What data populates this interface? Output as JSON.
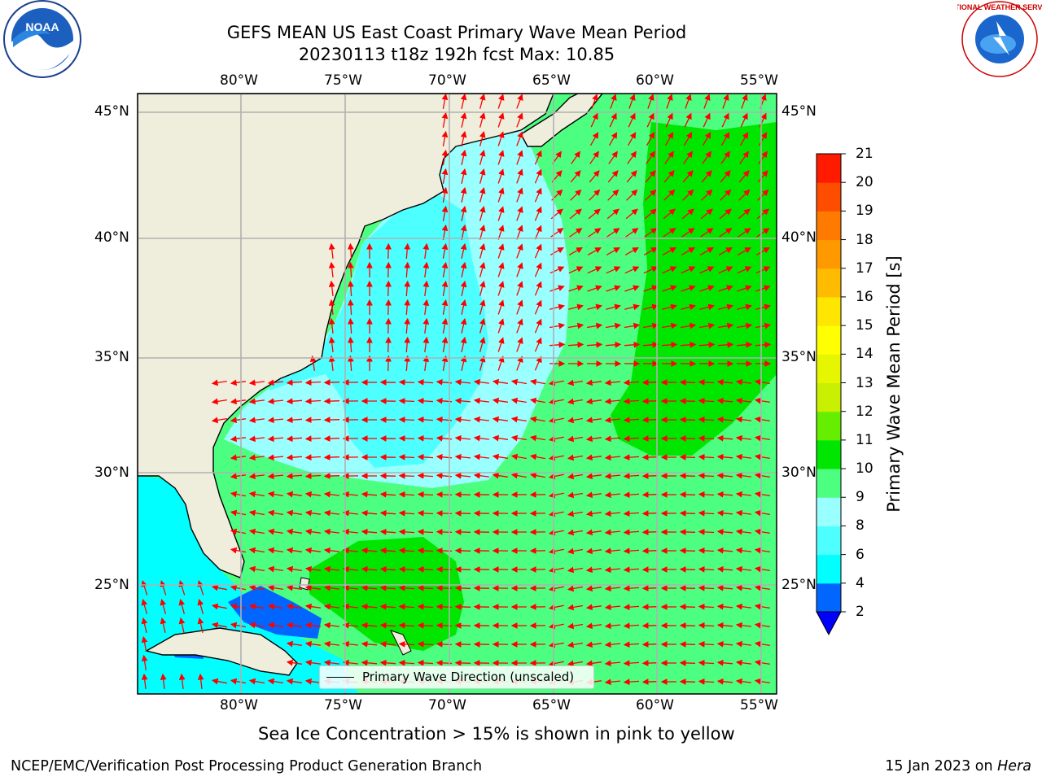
{
  "title_line1": "GEFS MEAN US East Coast Primary Wave Mean Period",
  "title_line2": "20230113 t18z 192h fcst   Max: 10.85",
  "lon_ticks": [
    "80°W",
    "75°W",
    "70°W",
    "65°W",
    "60°W",
    "55°W"
  ],
  "lat_ticks": [
    "45°N",
    "40°N",
    "35°N",
    "30°N",
    "25°N"
  ],
  "map_extent": {
    "lon": [
      -85,
      -54.3
    ],
    "lat": [
      20.5,
      46
    ]
  },
  "colorbar": {
    "label": "Primary Wave Mean Period [s]",
    "ticks": [
      "2",
      "4",
      "6",
      "8",
      "9",
      "10",
      "11",
      "12",
      "13",
      "14",
      "15",
      "16",
      "17",
      "18",
      "19",
      "20",
      "21"
    ],
    "colors": [
      "#0066ff",
      "#00ffff",
      "#4dffff",
      "#99ffff",
      "#4dff80",
      "#00e600",
      "#66ee00",
      "#c8f000",
      "#e6f500",
      "#ffff00",
      "#ffe600",
      "#ffbb00",
      "#ff9900",
      "#ff7a00",
      "#ff4d00",
      "#ff1a00"
    ],
    "under_color": "#0000ff"
  },
  "colors": {
    "land": "#efeedd",
    "arrow": "#ff0000",
    "grid": "#b0b0b0"
  },
  "legend_label": "Primary Wave Direction (unscaled)",
  "note": "Sea Ice Concentration > 15% is shown in pink to yellow",
  "footer_left": "NCEP/EMC/Verification Post Processing Product Generation Branch",
  "footer_right_date": "15 Jan 2023 on ",
  "footer_right_host": "Hera",
  "logo_left": "NOAA",
  "logo_right_text": "NATIONAL WEATHER SERVICE"
}
